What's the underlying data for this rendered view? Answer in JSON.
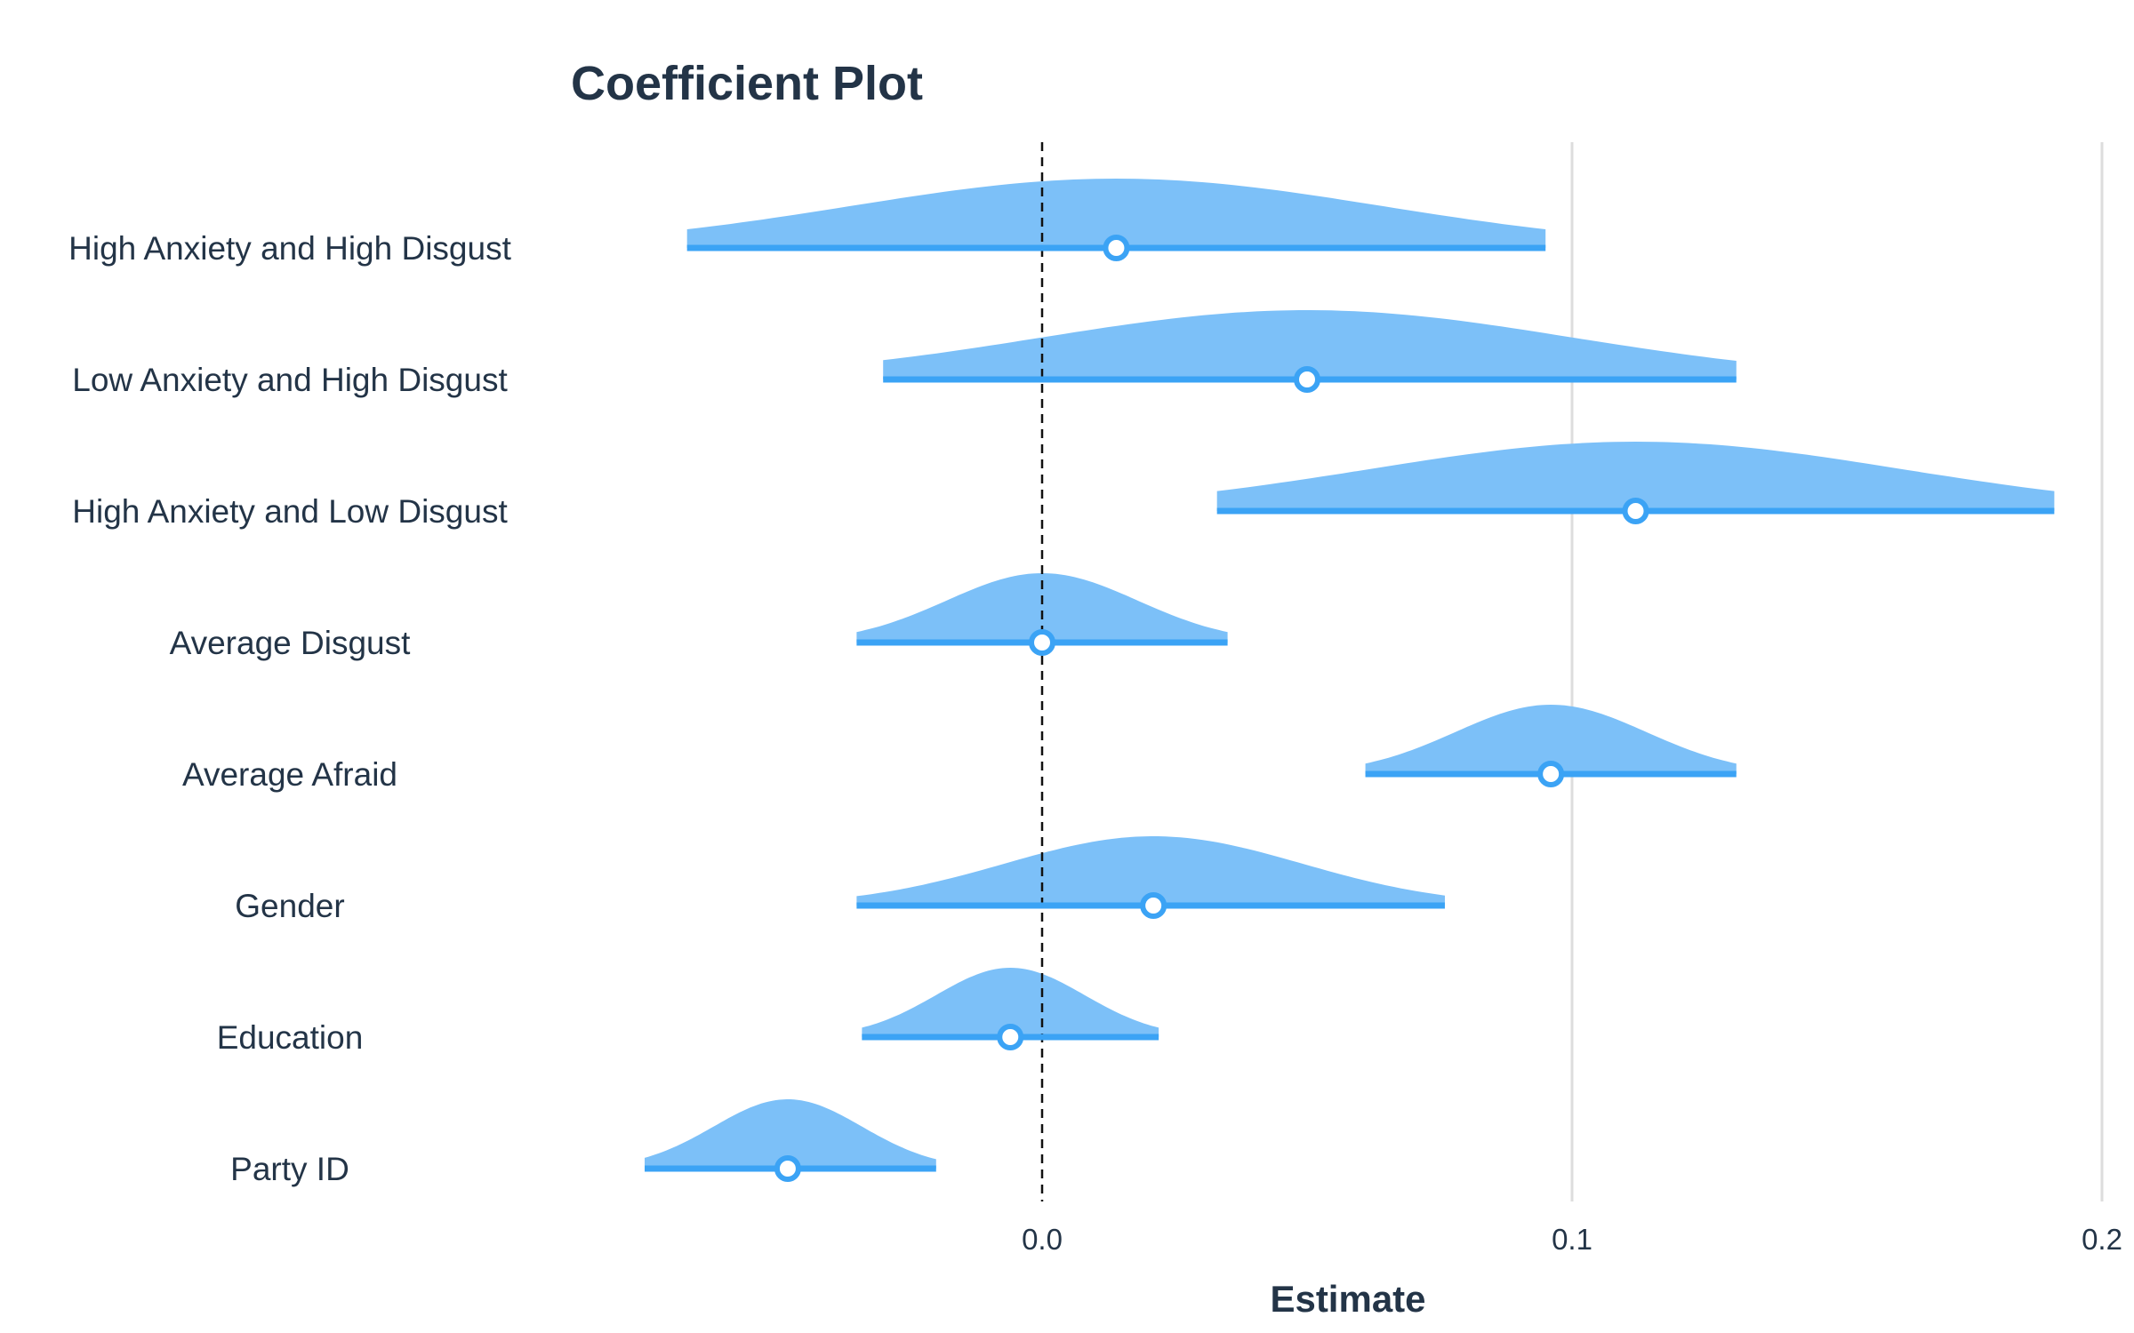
{
  "chart_data": {
    "type": "coefficient_violin",
    "title": "Coefficient Plot",
    "xlabel": "Estimate",
    "ylabel": "",
    "xlim": [
      -0.08,
      0.2
    ],
    "xticks": [
      0.0,
      0.1,
      0.2
    ],
    "x_tick_labels": [
      "0.0",
      "0.1",
      "0.2"
    ],
    "grid": true,
    "reference_line": 0.0,
    "colors": {
      "fill": "#7cc0f8",
      "line": "#3ba3f5",
      "text": "#233447",
      "grid": "#dddddd"
    },
    "terms": [
      {
        "label": "High Anxiety and High Disgust",
        "estimate": 0.014,
        "low": -0.067,
        "high": 0.095,
        "sd": 0.05
      },
      {
        "label": "Low Anxiety and High Disgust",
        "estimate": 0.05,
        "low": -0.03,
        "high": 0.131,
        "sd": 0.05
      },
      {
        "label": "High Anxiety and Low Disgust",
        "estimate": 0.112,
        "low": 0.033,
        "high": 0.191,
        "sd": 0.05
      },
      {
        "label": "Average Disgust",
        "estimate": 0.0,
        "low": -0.035,
        "high": 0.035,
        "sd": 0.018
      },
      {
        "label": "Average Afraid",
        "estimate": 0.096,
        "low": 0.061,
        "high": 0.131,
        "sd": 0.018
      },
      {
        "label": "Gender",
        "estimate": 0.021,
        "low": -0.035,
        "high": 0.076,
        "sd": 0.028
      },
      {
        "label": "Education",
        "estimate": -0.006,
        "low": -0.034,
        "high": 0.022,
        "sd": 0.014
      },
      {
        "label": "Party ID",
        "estimate": -0.048,
        "low": -0.075,
        "high": -0.02,
        "sd": 0.014
      }
    ]
  }
}
